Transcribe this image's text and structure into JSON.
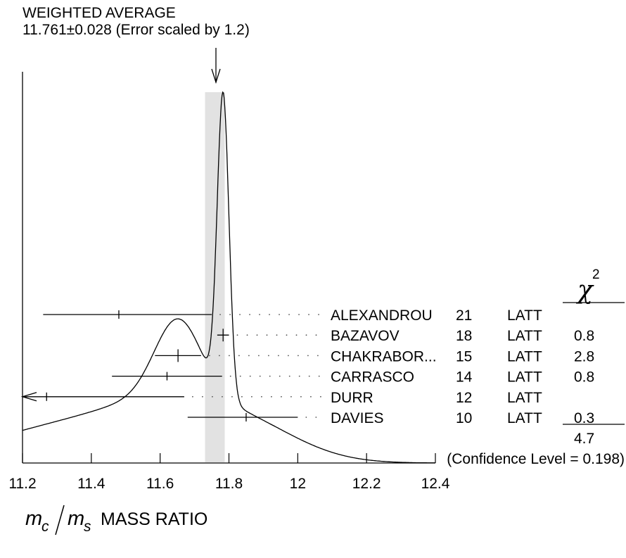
{
  "header": {
    "title": "WEIGHTED AVERAGE",
    "value_line": "11.761±0.028 (Error scaled by 1.2)"
  },
  "chart_data": {
    "type": "ideogram",
    "xlabel_var1": "m",
    "xlabel_sub1": "c",
    "xlabel_var2": "m",
    "xlabel_sub2": "s",
    "xlabel_text": "MASS RATIO",
    "xlim": [
      11.2,
      12.4
    ],
    "xticks": [
      11.2,
      11.4,
      11.6,
      11.8,
      12.0,
      12.2,
      12.4
    ],
    "xtick_labels": [
      "11.2",
      "11.4",
      "11.6",
      "11.8",
      "12",
      "12.2",
      "12.4"
    ],
    "weighted_average": {
      "value": 11.761,
      "error": 0.028,
      "scale_factor": 1.2
    },
    "chi2_header": "χ",
    "chi2_exp": "2",
    "measurements": [
      {
        "author": "ALEXANDROU",
        "year": "21",
        "tech": "LATT",
        "value": 11.48,
        "lo": 11.26,
        "hi": 11.75,
        "chi2": ""
      },
      {
        "author": "BAZAVOV",
        "year": "18",
        "tech": "LATT",
        "value": 11.783,
        "lo": 11.766,
        "hi": 11.8,
        "chi2": "0.8"
      },
      {
        "author": "CHAKRABOR...",
        "year": "15",
        "tech": "LATT",
        "value": 11.652,
        "lo": 11.585,
        "hi": 11.719,
        "chi2": "2.8"
      },
      {
        "author": "CARRASCO",
        "year": "14",
        "tech": "LATT",
        "value": 11.62,
        "lo": 11.46,
        "hi": 11.78,
        "chi2": "0.8"
      },
      {
        "author": "DURR",
        "year": "12",
        "tech": "LATT",
        "value": 11.27,
        "lo": 11.2,
        "hi": 11.67,
        "chi2": "",
        "arrow_left": true
      },
      {
        "author": "DAVIES",
        "year": "10",
        "tech": "LATT",
        "value": 11.85,
        "lo": 11.68,
        "hi": 12.0,
        "chi2": "0.3"
      }
    ],
    "chi2_total": "4.7",
    "confidence_level": "(Confidence Level = 0.198)"
  }
}
